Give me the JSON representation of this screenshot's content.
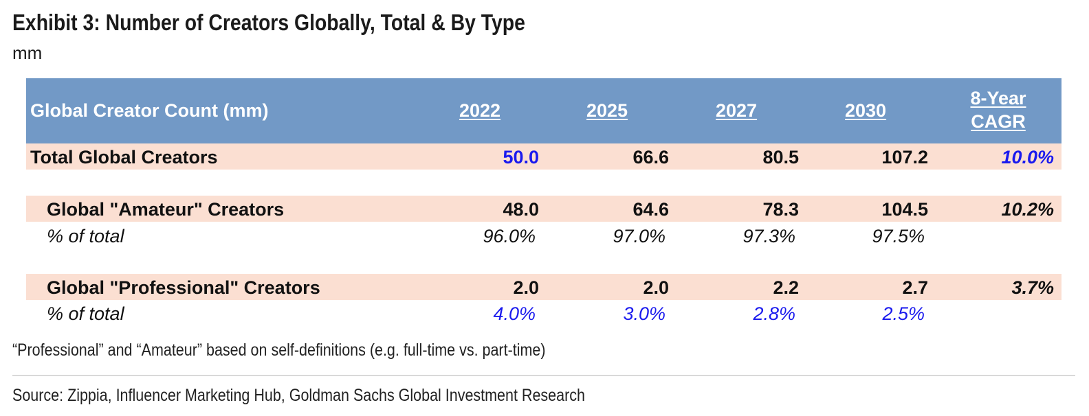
{
  "title": "Exhibit 3: Number of Creators Globally, Total & By Type",
  "subtitle": "mm",
  "table": {
    "header": {
      "label": "Global Creator Count (mm)",
      "years": [
        "2022",
        "2025",
        "2027",
        "2030"
      ],
      "cagr_line1": "8-Year",
      "cagr_line2": "CAGR"
    },
    "total": {
      "label": "Total Global Creators",
      "values": [
        "50.0",
        "66.6",
        "80.5",
        "107.2"
      ],
      "cagr": "10.0%"
    },
    "amateur": {
      "label": "Global \"Amateur\" Creators",
      "values": [
        "48.0",
        "64.6",
        "78.3",
        "104.5"
      ],
      "cagr": "10.2%",
      "pct_label": "% of total",
      "pct_values": [
        "96.0%",
        "97.0%",
        "97.3%",
        "97.5%"
      ]
    },
    "professional": {
      "label": "Global \"Professional\" Creators",
      "values": [
        "2.0",
        "2.0",
        "2.2",
        "2.7"
      ],
      "cagr": "3.7%",
      "pct_label": "% of total",
      "pct_values": [
        "4.0%",
        "3.0%",
        "2.8%",
        "2.5%"
      ]
    }
  },
  "note": "“Professional” and “Amateur” based on self-definitions (e.g. full-time vs. part-time)",
  "source": "Source: Zippia, Influencer Marketing Hub, Goldman Sachs Global Investment Research",
  "colors": {
    "header_bg": "#7299c6",
    "row_shade": "#fbdfd2",
    "highlight_blue": "#1a1aee"
  }
}
